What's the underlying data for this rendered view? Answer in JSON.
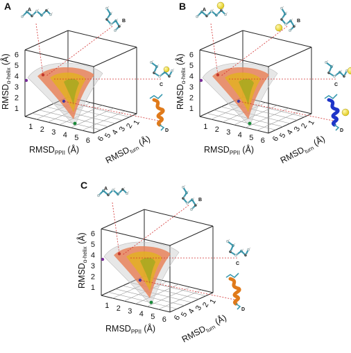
{
  "panels": [
    {
      "letter": "A",
      "y_axis_main": "RMSD",
      "y_axis_sub": "α-helix",
      "y_axis_unit": "(Å)",
      "x_axis_main": "RMSD",
      "x_axis_sub": "PPII",
      "x_axis_unit": "(Å)",
      "z_axis_main": "RMSD",
      "z_axis_sub": "turn",
      "z_axis_unit": "(Å)",
      "y_ticks": [
        "1",
        "2",
        "3",
        "4",
        "5",
        "6"
      ],
      "x_ticks": [
        "1",
        "2",
        "3",
        "4",
        "5",
        "6"
      ],
      "z_ticks": [
        "6",
        "5",
        "4",
        "3",
        "2",
        "1"
      ],
      "structures": [
        "A",
        "B",
        "C",
        "D"
      ]
    },
    {
      "letter": "B",
      "y_axis_main": "RMSD",
      "y_axis_sub": "α-helix",
      "y_axis_unit": "(Å)",
      "x_axis_main": "RMSD",
      "x_axis_sub": "PPII",
      "x_axis_unit": "(Å)",
      "z_axis_main": "RMSD",
      "z_axis_sub": "turn",
      "z_axis_unit": "(Å)",
      "y_ticks": [
        "1",
        "2",
        "3",
        "4",
        "5",
        "6"
      ],
      "x_ticks": [
        "1",
        "2",
        "3",
        "4",
        "5",
        "6"
      ],
      "z_ticks": [
        "6",
        "5",
        "4",
        "3",
        "2",
        "1"
      ],
      "structures": [
        "A",
        "B",
        "C",
        "D"
      ]
    },
    {
      "letter": "C",
      "y_axis_main": "RMSD",
      "y_axis_sub": "α-helix",
      "y_axis_unit": "(Å)",
      "x_axis_main": "RMSD",
      "x_axis_sub": "PPII",
      "x_axis_unit": "(Å)",
      "z_axis_main": "RMSD",
      "z_axis_sub": "turn",
      "z_axis_unit": "(Å)",
      "y_ticks": [
        "1",
        "2",
        "3",
        "4",
        "5",
        "6"
      ],
      "x_ticks": [
        "1",
        "2",
        "3",
        "4",
        "5",
        "6"
      ],
      "z_ticks": [
        "6",
        "5",
        "4",
        "3",
        "2",
        "1"
      ],
      "structures": [
        "A",
        "B",
        "C",
        "D"
      ]
    }
  ],
  "colors": {
    "frame": "#222222",
    "guide_line": "#d23030",
    "surface_outer": "#c9c9c9",
    "surface_mid": "#e8835a",
    "surface_core": "#e2b21f",
    "marker_purple": "#7a2f9a",
    "marker_red": "#c0392b",
    "marker_green": "#1b8a3a",
    "molecule": "#3a9ab0",
    "ion": "#e2cc1c",
    "helix_orange": "#e07a1a",
    "helix_blue": "#1f35c8"
  }
}
